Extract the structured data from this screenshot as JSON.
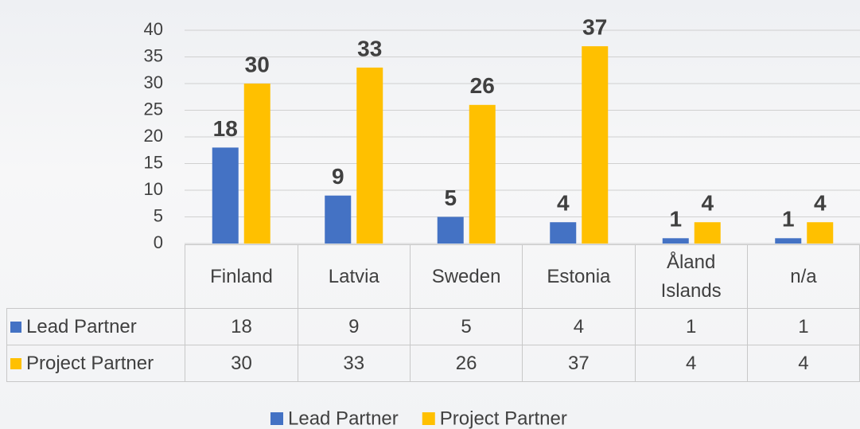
{
  "chart_data": {
    "type": "bar",
    "categories": [
      "Finland",
      "Latvia",
      "Sweden",
      "Estonia",
      "Åland Islands",
      "n/a"
    ],
    "series": [
      {
        "name": "Lead Partner",
        "color": "#4472c4",
        "values": [
          18,
          9,
          5,
          4,
          1,
          1
        ]
      },
      {
        "name": "Project Partner",
        "color": "#ffc000",
        "values": [
          30,
          33,
          26,
          37,
          4,
          4
        ]
      }
    ],
    "ylim": [
      0,
      40
    ],
    "yticks": [
      0,
      5,
      10,
      15,
      20,
      25,
      30,
      35,
      40
    ],
    "grid": true
  }
}
